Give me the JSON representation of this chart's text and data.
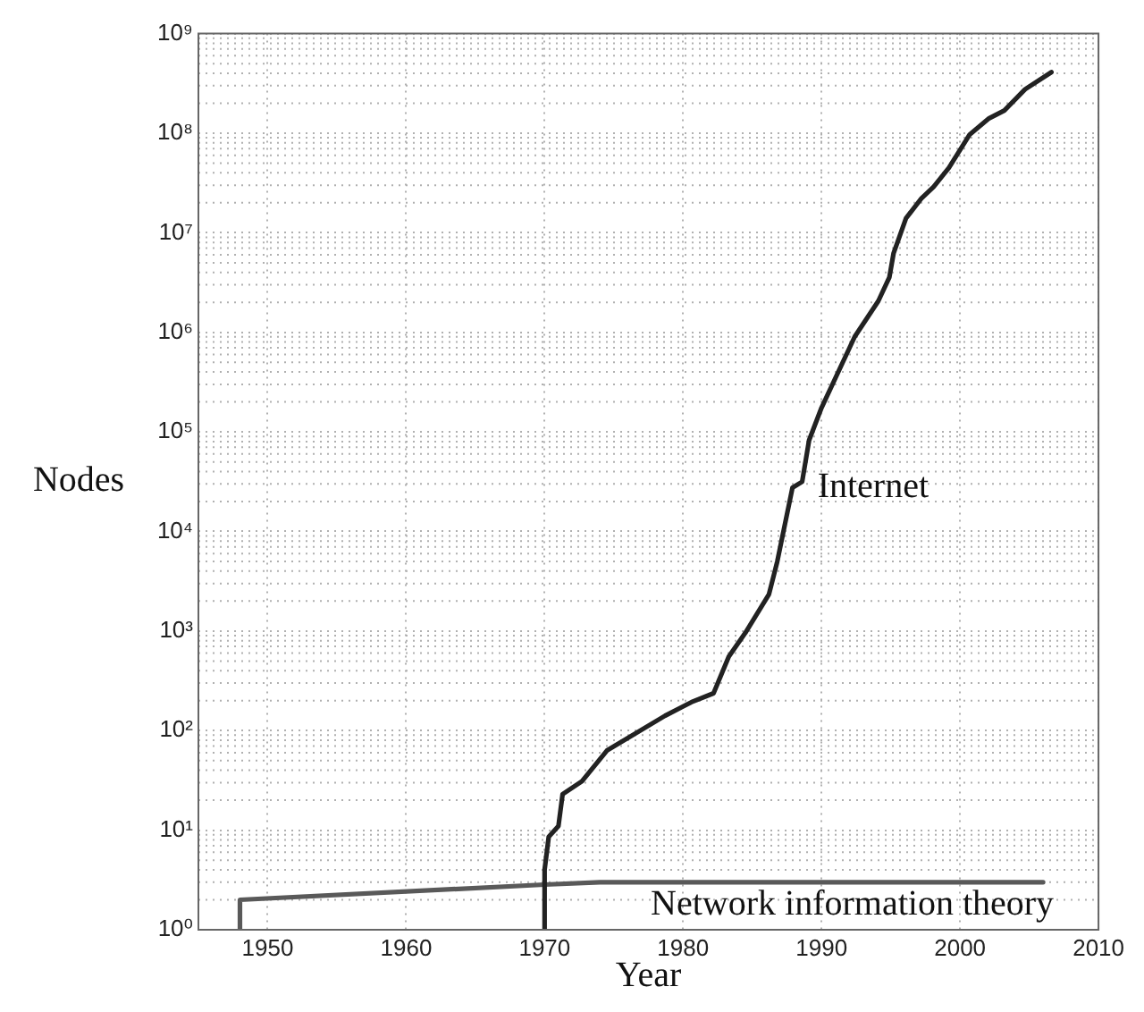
{
  "chart_data": {
    "type": "line",
    "xlabel": "Year",
    "ylabel": "Nodes",
    "xlim": [
      1945,
      2010
    ],
    "xticks": [
      1950,
      1960,
      1970,
      1980,
      1990,
      2000,
      2010
    ],
    "ylim": [
      1,
      1000000000
    ],
    "yticks": [
      {
        "value": 1,
        "label": "10⁰"
      },
      {
        "value": 10,
        "label": "10¹"
      },
      {
        "value": 100,
        "label": "10²"
      },
      {
        "value": 1000,
        "label": "10³"
      },
      {
        "value": 10000,
        "label": "10⁴"
      },
      {
        "value": 100000,
        "label": "10⁵"
      },
      {
        "value": 1000000,
        "label": "10⁶"
      },
      {
        "value": 10000000,
        "label": "10⁷"
      },
      {
        "value": 100000000,
        "label": "10⁸"
      },
      {
        "value": 1000000000,
        "label": "10⁹"
      }
    ],
    "log": "y",
    "grid": true,
    "marker": "none",
    "line_style": "solid",
    "series": [
      {
        "name": "Internet",
        "color": "#222222",
        "x": [
          1970,
          1970,
          1970.3,
          1971,
          1971.3,
          1972.7,
          1974.5,
          1978.7,
          1980.6,
          1982.2,
          1983.3,
          1984.5,
          1986.2,
          1986.8,
          1987.9,
          1988.6,
          1989.1,
          1990,
          1992.4,
          1994.1,
          1994.9,
          1995.2,
          1996.1,
          1997.2,
          1998.1,
          1999.2,
          2000.7,
          2002.1,
          2003.2,
          2004.7,
          2006.6
        ],
        "values": [
          1,
          4,
          8.6,
          11,
          23,
          31,
          63,
          141,
          193,
          237,
          553,
          960,
          2330,
          4970,
          27500,
          31600,
          82400,
          175000,
          906000,
          2060000,
          3580000,
          6200000,
          14000000,
          22000000,
          29000000,
          45000000,
          97000000,
          141000000,
          169000000,
          276000000,
          410000000
        ]
      },
      {
        "name": "Network information theory",
        "color": "#595959",
        "x": [
          1948,
          1948,
          1970,
          1974,
          2006
        ],
        "values": [
          1,
          2,
          2.84,
          3,
          3
        ]
      }
    ]
  }
}
